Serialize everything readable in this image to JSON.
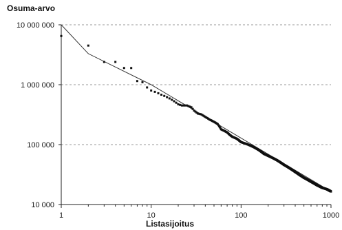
{
  "chart_data": {
    "type": "scatter",
    "title": "",
    "xlabel": "Listasijoitus",
    "ylabel": "Osuma-arvo",
    "x_scale": "log",
    "y_scale": "log",
    "xlim": [
      1,
      1000
    ],
    "ylim": [
      10000,
      10000000
    ],
    "x_ticks": [
      {
        "value": 1,
        "label": "1"
      },
      {
        "value": 10,
        "label": "10"
      },
      {
        "value": 100,
        "label": "100"
      },
      {
        "value": 1000,
        "label": "1000"
      }
    ],
    "y_ticks": [
      {
        "value": 10000,
        "label": "10 000"
      },
      {
        "value": 100000,
        "label": "100 000"
      },
      {
        "value": 1000000,
        "label": "1 000 000"
      },
      {
        "value": 10000000,
        "label": "10 000 000"
      }
    ],
    "grid": {
      "x": false,
      "y": true,
      "style": "dashed"
    },
    "legend": "none",
    "series": [
      {
        "kind": "points",
        "x": [
          1,
          2,
          3,
          4,
          5,
          6,
          7,
          8,
          9,
          10,
          11,
          12,
          13,
          14,
          15,
          16,
          17,
          18,
          19,
          20,
          22,
          25,
          28,
          30,
          33,
          36,
          40,
          45,
          50,
          55,
          60,
          70,
          75,
          80,
          90,
          100,
          120,
          140,
          160,
          180,
          200,
          250,
          300,
          350,
          400,
          450,
          500,
          600,
          700,
          800,
          900,
          1000
        ],
        "y": [
          6500000,
          4500000,
          2400000,
          2400000,
          1900000,
          1900000,
          1150000,
          1100000,
          900000,
          800000,
          760000,
          720000,
          680000,
          650000,
          620000,
          590000,
          560000,
          530000,
          500000,
          470000,
          450000,
          450000,
          420000,
          370000,
          330000,
          320000,
          290000,
          260000,
          240000,
          220000,
          180000,
          160000,
          145000,
          135000,
          125000,
          110000,
          100000,
          90000,
          80000,
          70000,
          65000,
          55000,
          46000,
          40000,
          35000,
          31000,
          28000,
          24000,
          21000,
          19000,
          18000,
          16500
        ]
      },
      {
        "kind": "line",
        "x": [
          1,
          2,
          10,
          1000
        ],
        "y": [
          10000000,
          3300000,
          1000000,
          16500
        ]
      }
    ]
  }
}
